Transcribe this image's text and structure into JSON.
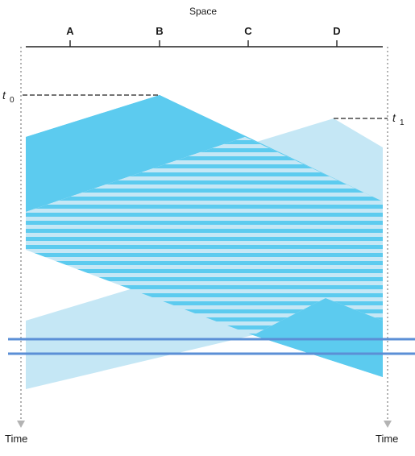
{
  "diagram": {
    "axis_title": "Space",
    "nodes": [
      "A",
      "B",
      "C",
      "D"
    ],
    "time_label_left": "Time",
    "time_label_right": "Time",
    "t0": {
      "letter": "t",
      "sub": "0"
    },
    "t1": {
      "letter": "t",
      "sub": "1"
    },
    "colors": {
      "signal_b": "#5ccbef",
      "signal_d": "#c5e7f5",
      "overlap_stripe": "#5ccbef",
      "detect_line": "#5b8fd6",
      "axis": "#222222",
      "timeline": "#b3b3b3"
    }
  }
}
